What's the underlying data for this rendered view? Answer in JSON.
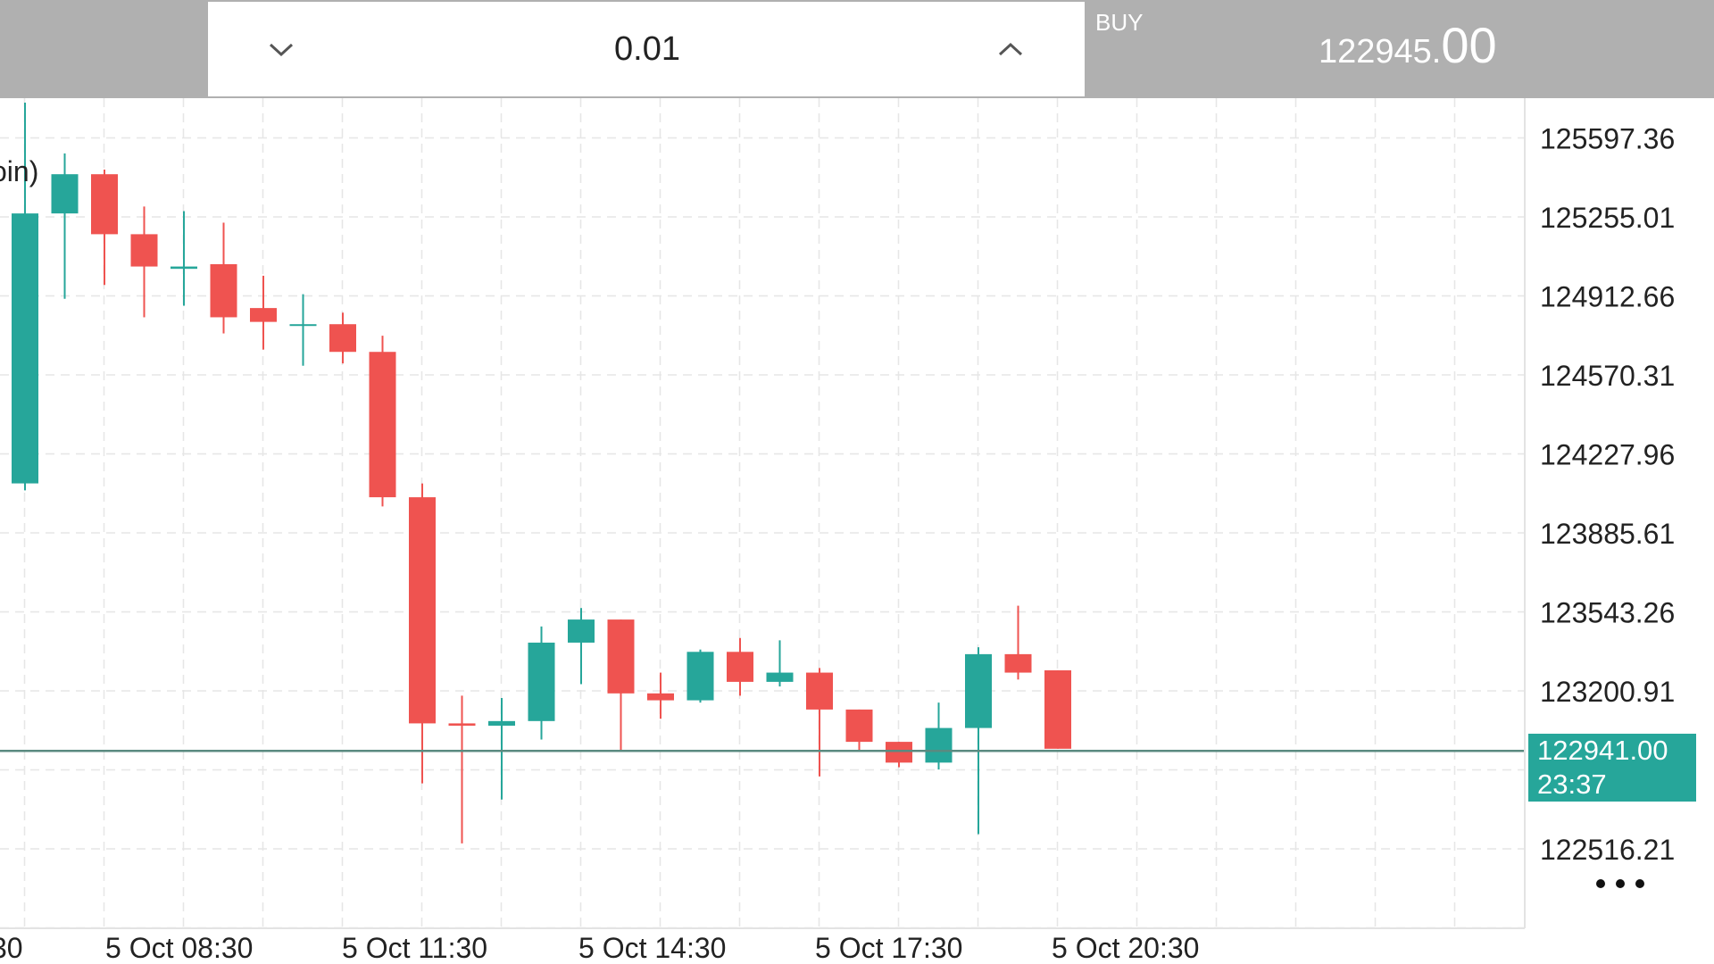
{
  "order_panel": {
    "lot_value": "0.01",
    "buy_label": "BUY",
    "buy_price_main": "122945.",
    "buy_price_fraction": "00"
  },
  "partial_title_text": "oin)",
  "current_price": {
    "value": "122941.00",
    "countdown": "23:37",
    "color": "#26a69a"
  },
  "colors": {
    "up": "#26a69a",
    "down": "#ef5350",
    "header_bg": "#b0b0b0"
  },
  "icons": {
    "decrease": "chevron-down-icon",
    "increase": "chevron-up-icon",
    "more": "more-dots-icon"
  },
  "chart_data": {
    "type": "candlestick",
    "y_ticks": [
      "125597.36",
      "125255.01",
      "124912.66",
      "124570.31",
      "124227.96",
      "123885.61",
      "123543.26",
      "123200.91",
      "122516.21"
    ],
    "y_range": [
      122300,
      125750
    ],
    "x_tick_labels": [
      "30",
      "5 Oct 08:30",
      "5 Oct 11:30",
      "5 Oct 14:30",
      "5 Oct 17:30",
      "5 Oct 20:30"
    ],
    "grid": true,
    "current_price": 122941,
    "candles": [
      {
        "o": 124100,
        "h": 125750,
        "l": 124070,
        "c": 125270
      },
      {
        "o": 125270,
        "h": 125530,
        "l": 124900,
        "c": 125440
      },
      {
        "o": 125440,
        "h": 125460,
        "l": 124960,
        "c": 125180
      },
      {
        "o": 125180,
        "h": 125300,
        "l": 124820,
        "c": 125040
      },
      {
        "o": 125030,
        "h": 125280,
        "l": 124870,
        "c": 125040
      },
      {
        "o": 125050,
        "h": 125230,
        "l": 124750,
        "c": 124820
      },
      {
        "o": 124860,
        "h": 125000,
        "l": 124680,
        "c": 124800
      },
      {
        "o": 124790,
        "h": 124920,
        "l": 124610,
        "c": 124790
      },
      {
        "o": 124790,
        "h": 124840,
        "l": 124620,
        "c": 124670
      },
      {
        "o": 124670,
        "h": 124740,
        "l": 124000,
        "c": 124040
      },
      {
        "o": 124040,
        "h": 124100,
        "l": 122800,
        "c": 123060
      },
      {
        "o": 123060,
        "h": 123180,
        "l": 122540,
        "c": 123050
      },
      {
        "o": 123050,
        "h": 123170,
        "l": 122730,
        "c": 123070
      },
      {
        "o": 123070,
        "h": 123480,
        "l": 122990,
        "c": 123410
      },
      {
        "o": 123410,
        "h": 123560,
        "l": 123230,
        "c": 123510
      },
      {
        "o": 123510,
        "h": 123510,
        "l": 122940,
        "c": 123190
      },
      {
        "o": 123190,
        "h": 123280,
        "l": 123080,
        "c": 123160
      },
      {
        "o": 123160,
        "h": 123380,
        "l": 123150,
        "c": 123370
      },
      {
        "o": 123370,
        "h": 123430,
        "l": 123180,
        "c": 123240
      },
      {
        "o": 123240,
        "h": 123420,
        "l": 123220,
        "c": 123280
      },
      {
        "o": 123280,
        "h": 123300,
        "l": 122830,
        "c": 123120
      },
      {
        "o": 123120,
        "h": 123120,
        "l": 122940,
        "c": 122980
      },
      {
        "o": 122980,
        "h": 122980,
        "l": 122870,
        "c": 122890
      },
      {
        "o": 122890,
        "h": 123150,
        "l": 122860,
        "c": 123040
      },
      {
        "o": 123040,
        "h": 123390,
        "l": 122580,
        "c": 123360
      },
      {
        "o": 123360,
        "h": 123570,
        "l": 123250,
        "c": 123280
      },
      {
        "o": 123290,
        "h": 123290,
        "l": 122950,
        "c": 122950
      }
    ]
  }
}
